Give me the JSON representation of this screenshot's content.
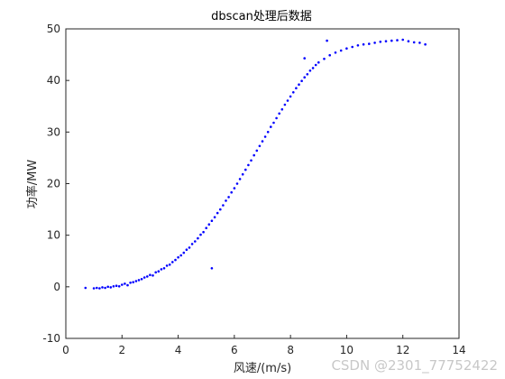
{
  "chart_data": {
    "type": "scatter",
    "title": "dbscan处理后数据",
    "xlabel": "风速/(m/s)",
    "ylabel": "功率/MW",
    "xlim": [
      0,
      14
    ],
    "ylim": [
      -10,
      50
    ],
    "xticks": [
      "0",
      "2",
      "4",
      "6",
      "8",
      "10",
      "12",
      "14"
    ],
    "yticks": [
      "-10",
      "0",
      "10",
      "20",
      "30",
      "40",
      "50"
    ],
    "grid": false,
    "marker_color": "#0000ff",
    "series": [
      {
        "points": [
          [
            0.7,
            -0.2
          ],
          [
            1.0,
            -0.3
          ],
          [
            1.1,
            -0.2
          ],
          [
            1.2,
            -0.3
          ],
          [
            1.3,
            -0.1
          ],
          [
            1.4,
            -0.2
          ],
          [
            1.5,
            0.0
          ],
          [
            1.6,
            -0.1
          ],
          [
            1.7,
            0.1
          ],
          [
            1.8,
            0.2
          ],
          [
            1.9,
            0.1
          ],
          [
            2.0,
            0.4
          ],
          [
            2.1,
            0.6
          ],
          [
            2.2,
            0.3
          ],
          [
            2.3,
            0.8
          ],
          [
            2.4,
            0.9
          ],
          [
            2.5,
            1.1
          ],
          [
            2.6,
            1.3
          ],
          [
            2.7,
            1.5
          ],
          [
            2.8,
            1.8
          ],
          [
            2.9,
            2.0
          ],
          [
            3.0,
            2.3
          ],
          [
            3.1,
            2.2
          ],
          [
            3.2,
            2.8
          ],
          [
            3.3,
            3.0
          ],
          [
            3.4,
            3.4
          ],
          [
            3.5,
            3.6
          ],
          [
            3.6,
            4.1
          ],
          [
            3.7,
            4.3
          ],
          [
            3.8,
            4.8
          ],
          [
            3.9,
            5.2
          ],
          [
            4.0,
            5.7
          ],
          [
            4.1,
            6.1
          ],
          [
            4.2,
            6.6
          ],
          [
            4.3,
            7.2
          ],
          [
            4.4,
            7.6
          ],
          [
            4.5,
            8.3
          ],
          [
            4.6,
            8.8
          ],
          [
            4.7,
            9.4
          ],
          [
            4.8,
            10.1
          ],
          [
            4.9,
            10.6
          ],
          [
            5.0,
            11.4
          ],
          [
            5.1,
            12.1
          ],
          [
            5.2,
            12.8
          ],
          [
            5.3,
            13.5
          ],
          [
            5.4,
            14.3
          ],
          [
            5.5,
            15.0
          ],
          [
            5.6,
            15.8
          ],
          [
            5.7,
            16.7
          ],
          [
            5.8,
            17.4
          ],
          [
            5.9,
            18.3
          ],
          [
            6.0,
            19.1
          ],
          [
            6.1,
            20.0
          ],
          [
            6.2,
            20.9
          ],
          [
            6.3,
            21.8
          ],
          [
            6.4,
            22.7
          ],
          [
            6.5,
            23.6
          ],
          [
            6.6,
            24.5
          ],
          [
            6.7,
            25.5
          ],
          [
            6.8,
            26.4
          ],
          [
            6.9,
            27.3
          ],
          [
            7.0,
            28.2
          ],
          [
            7.1,
            29.1
          ],
          [
            7.2,
            30.0
          ],
          [
            7.3,
            31.0
          ],
          [
            7.4,
            31.8
          ],
          [
            7.5,
            32.7
          ],
          [
            7.6,
            33.6
          ],
          [
            7.7,
            34.4
          ],
          [
            7.8,
            35.3
          ],
          [
            7.9,
            36.1
          ],
          [
            8.0,
            36.9
          ],
          [
            8.1,
            37.7
          ],
          [
            8.2,
            38.5
          ],
          [
            8.3,
            39.2
          ],
          [
            8.4,
            39.9
          ],
          [
            8.5,
            40.6
          ],
          [
            8.6,
            41.2
          ],
          [
            8.7,
            41.9
          ],
          [
            8.8,
            42.4
          ],
          [
            8.9,
            43.0
          ],
          [
            9.0,
            43.5
          ],
          [
            9.2,
            44.2
          ],
          [
            9.4,
            44.9
          ],
          [
            9.6,
            45.4
          ],
          [
            9.8,
            45.8
          ],
          [
            10.0,
            46.2
          ],
          [
            10.2,
            46.5
          ],
          [
            10.4,
            46.8
          ],
          [
            10.6,
            47.0
          ],
          [
            10.8,
            47.1
          ],
          [
            11.0,
            47.3
          ],
          [
            11.2,
            47.5
          ],
          [
            11.4,
            47.6
          ],
          [
            11.6,
            47.7
          ],
          [
            11.8,
            47.8
          ],
          [
            12.0,
            47.9
          ],
          [
            12.2,
            47.6
          ],
          [
            12.4,
            47.4
          ],
          [
            12.6,
            47.3
          ],
          [
            12.8,
            47.0
          ],
          [
            5.2,
            3.6
          ],
          [
            8.5,
            44.3
          ],
          [
            9.3,
            47.7
          ]
        ]
      }
    ]
  },
  "watermark": "CSDN @2301_77752422"
}
